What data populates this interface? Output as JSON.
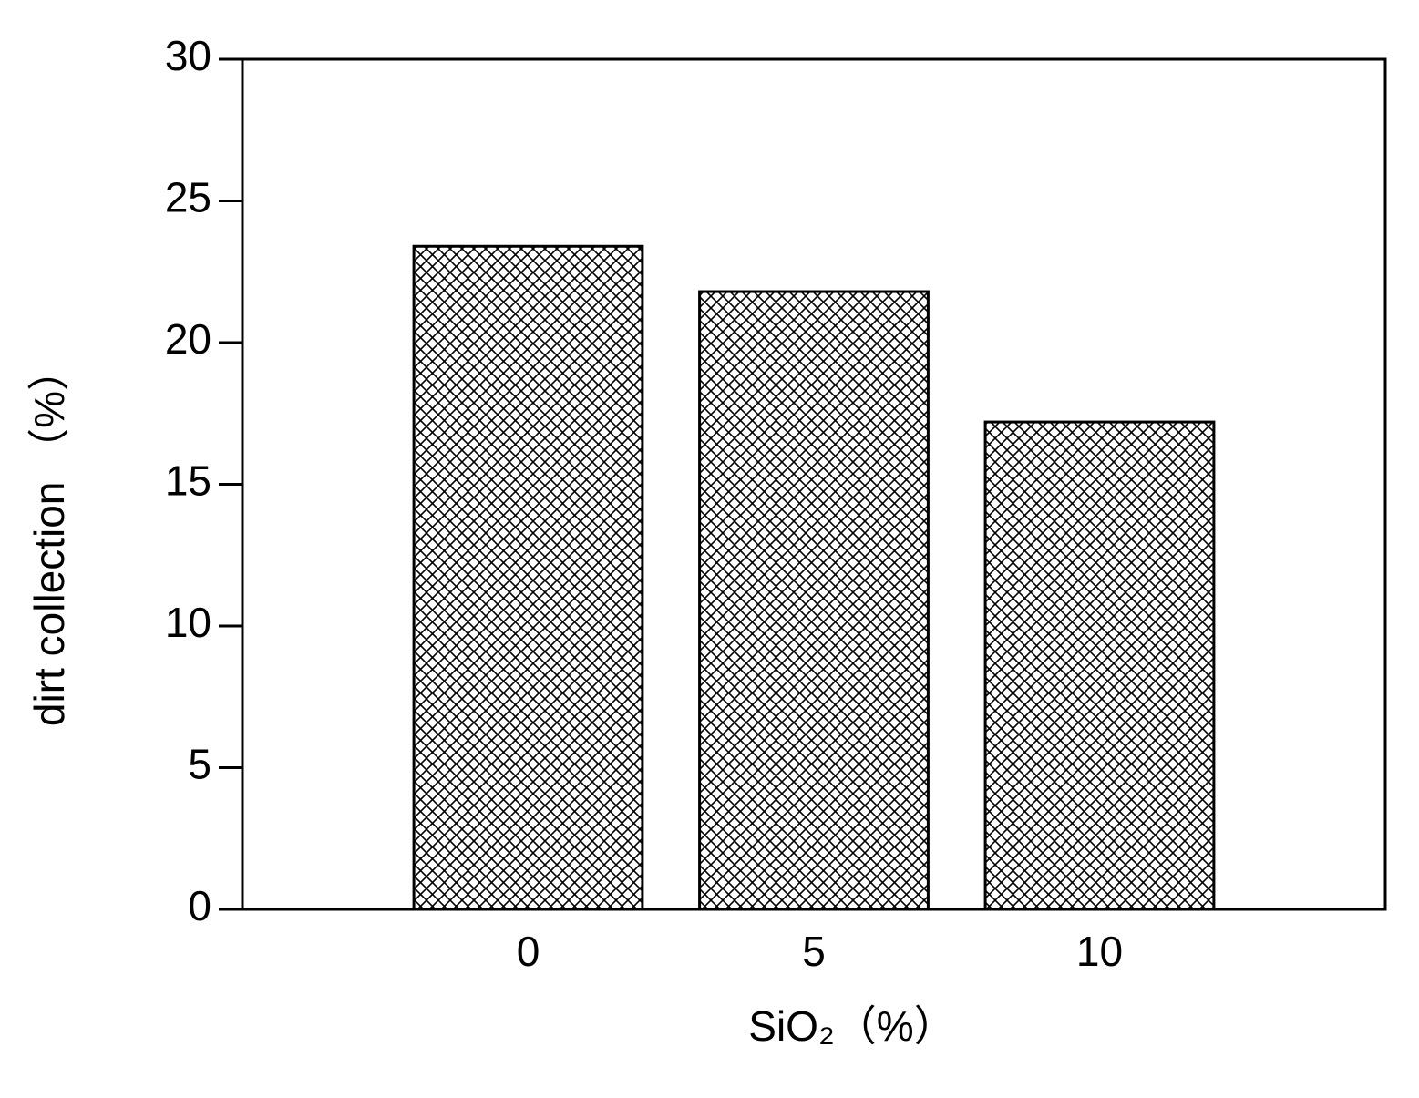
{
  "chart_data": {
    "type": "bar",
    "x_label": "SiO₂（%）",
    "y_label": "dirt collection （%）",
    "categories": [
      "0",
      "5",
      "10"
    ],
    "values": [
      23.4,
      21.8,
      17.2
    ],
    "color": "#000000",
    "ylim": [
      0,
      30
    ],
    "yticks": [
      0,
      5,
      10,
      15,
      20,
      25,
      30
    ],
    "grid": false
  }
}
